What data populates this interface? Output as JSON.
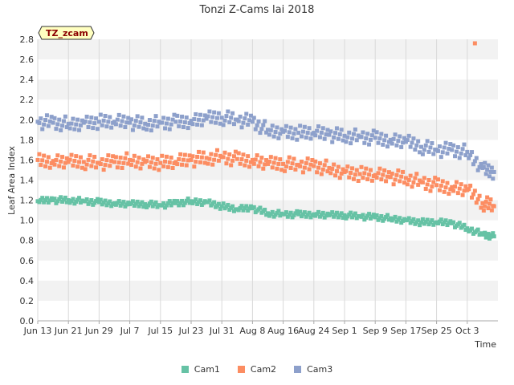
{
  "chart_data": {
    "type": "scatter",
    "title": "Tonzi Z-Cams lai 2018",
    "xlabel": "Time",
    "ylabel": "Leaf Area Index",
    "ylim": [
      0,
      2.8
    ],
    "yticks": [
      "0.0",
      "0.2",
      "0.4",
      "0.6",
      "0.8",
      "1.0",
      "1.2",
      "1.4",
      "1.6",
      "1.8",
      "2.0",
      "2.2",
      "2.4",
      "2.6",
      "2.8"
    ],
    "xlim": [
      "2018-06-13",
      "2018-10-11"
    ],
    "xticks": [
      "Jun 13",
      "Jun 21",
      "Jun 29",
      "Jul 7",
      "Jul 15",
      "Jul 23",
      "Jul 31",
      "Aug 8",
      "Aug 16",
      "Aug 24",
      "Sep 1",
      "Sep 9",
      "Sep 17",
      "Sep 25",
      "Oct 3"
    ],
    "grid": "horizontal bands",
    "legend": "bottom-center",
    "site_label": "TZ_zcam",
    "series": [
      {
        "name": "Cam1",
        "color": "#66c2a5",
        "x": [
          "2018-06-13",
          "2018-06-17",
          "2018-06-21",
          "2018-06-25",
          "2018-06-29",
          "2018-07-03",
          "2018-07-07",
          "2018-07-11",
          "2018-07-15",
          "2018-07-19",
          "2018-07-23",
          "2018-07-27",
          "2018-07-31",
          "2018-08-04",
          "2018-08-08",
          "2018-08-12",
          "2018-08-16",
          "2018-08-20",
          "2018-08-24",
          "2018-08-28",
          "2018-09-01",
          "2018-09-05",
          "2018-09-09",
          "2018-09-13",
          "2018-09-17",
          "2018-09-21",
          "2018-09-25",
          "2018-09-29",
          "2018-10-03",
          "2018-10-07",
          "2018-10-10"
        ],
        "y": [
          1.19,
          1.2,
          1.2,
          1.19,
          1.18,
          1.17,
          1.16,
          1.16,
          1.15,
          1.17,
          1.19,
          1.18,
          1.14,
          1.11,
          1.12,
          1.07,
          1.06,
          1.06,
          1.06,
          1.05,
          1.05,
          1.04,
          1.03,
          1.02,
          1.0,
          0.98,
          0.98,
          0.97,
          0.92,
          0.86,
          0.84
        ]
      },
      {
        "name": "Cam2",
        "color": "#fc8d62",
        "x": [
          "2018-06-13",
          "2018-06-17",
          "2018-06-21",
          "2018-06-25",
          "2018-06-29",
          "2018-07-03",
          "2018-07-07",
          "2018-07-11",
          "2018-07-15",
          "2018-07-19",
          "2018-07-23",
          "2018-07-27",
          "2018-07-31",
          "2018-08-04",
          "2018-08-08",
          "2018-08-12",
          "2018-08-16",
          "2018-08-20",
          "2018-08-24",
          "2018-08-28",
          "2018-09-01",
          "2018-09-05",
          "2018-09-09",
          "2018-09-13",
          "2018-09-17",
          "2018-09-21",
          "2018-09-25",
          "2018-09-29",
          "2018-10-03",
          "2018-10-07",
          "2018-10-10"
        ],
        "y": [
          1.6,
          1.59,
          1.58,
          1.58,
          1.57,
          1.58,
          1.6,
          1.58,
          1.57,
          1.58,
          1.6,
          1.62,
          1.63,
          1.61,
          1.6,
          1.56,
          1.56,
          1.55,
          1.54,
          1.52,
          1.48,
          1.46,
          1.45,
          1.43,
          1.42,
          1.38,
          1.35,
          1.33,
          1.3,
          1.17,
          1.14
        ],
        "outlier": {
          "x": "2018-10-05",
          "y": 2.76
        }
      },
      {
        "name": "Cam3",
        "color": "#8da0cb",
        "x": [
          "2018-06-13",
          "2018-06-17",
          "2018-06-21",
          "2018-06-25",
          "2018-06-29",
          "2018-07-03",
          "2018-07-07",
          "2018-07-11",
          "2018-07-15",
          "2018-07-19",
          "2018-07-23",
          "2018-07-27",
          "2018-07-31",
          "2018-08-04",
          "2018-08-08",
          "2018-08-12",
          "2018-08-16",
          "2018-08-20",
          "2018-08-24",
          "2018-08-28",
          "2018-09-01",
          "2018-09-05",
          "2018-09-09",
          "2018-09-13",
          "2018-09-17",
          "2018-09-21",
          "2018-09-25",
          "2018-09-29",
          "2018-10-03",
          "2018-10-07",
          "2018-10-10"
        ],
        "y": [
          1.98,
          1.97,
          1.96,
          1.97,
          1.98,
          1.98,
          1.97,
          1.96,
          1.97,
          1.98,
          1.99,
          2.01,
          2.02,
          2.0,
          1.98,
          1.9,
          1.88,
          1.87,
          1.87,
          1.85,
          1.84,
          1.83,
          1.82,
          1.8,
          1.78,
          1.73,
          1.7,
          1.7,
          1.68,
          1.52,
          1.48
        ]
      }
    ]
  }
}
